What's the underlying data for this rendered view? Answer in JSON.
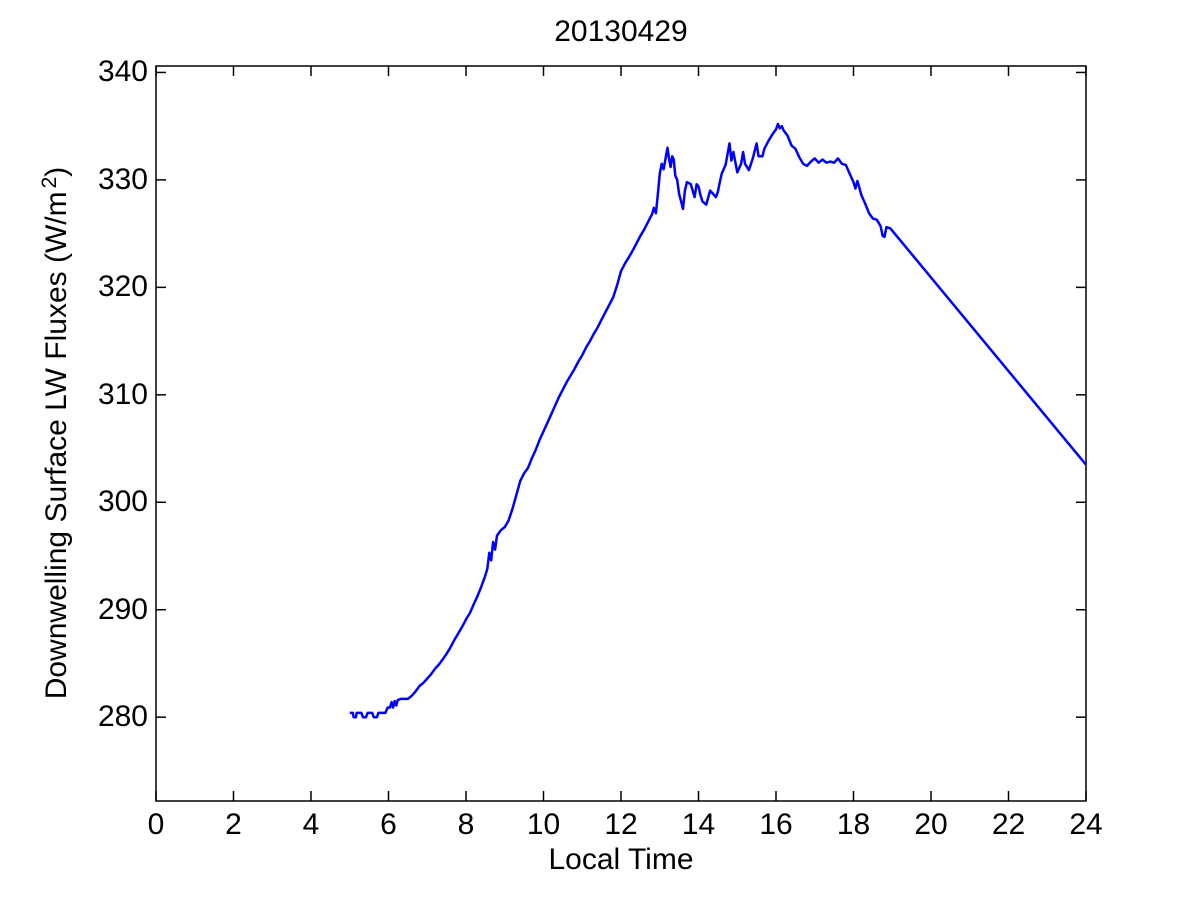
{
  "figure": {
    "title": "20130429",
    "background_color": "#ffffff"
  },
  "axes": {
    "xlabel": "Local Time",
    "ylabel": {
      "main": "Downwelling Surface LW Fluxes (W/m",
      "sup": "2",
      "close": ")"
    },
    "axis_color": "#000000",
    "tick_direction": "in",
    "box": "on"
  },
  "chart_data": {
    "type": "line",
    "title": "20130429",
    "xlabel": "Local Time",
    "ylabel": "Downwelling Surface LW Fluxes (W/m^2)",
    "xlim": [
      0,
      24
    ],
    "ylim": [
      272.2,
      340.6
    ],
    "xticks": [
      0,
      2,
      4,
      6,
      8,
      10,
      12,
      14,
      16,
      18,
      20,
      22,
      24
    ],
    "yticks": [
      280,
      290,
      300,
      310,
      320,
      330,
      340
    ],
    "grid": false,
    "legend": "none",
    "line_color": "#0000ff",
    "line_width": 2.5,
    "series_name": "downwelling-lw-flux",
    "x": [
      5.0,
      5.08,
      5.1,
      5.16,
      5.18,
      5.3,
      5.34,
      5.42,
      5.46,
      5.58,
      5.62,
      5.7,
      5.74,
      5.92,
      5.98,
      6.04,
      6.08,
      6.12,
      6.16,
      6.2,
      6.24,
      6.32,
      6.5,
      6.6,
      6.7,
      6.8,
      6.9,
      7.0,
      7.1,
      7.2,
      7.3,
      7.4,
      7.5,
      7.6,
      7.7,
      7.8,
      7.9,
      8.0,
      8.1,
      8.2,
      8.3,
      8.4,
      8.5,
      8.55,
      8.6,
      8.65,
      8.7,
      8.75,
      8.8,
      8.9,
      9.0,
      9.1,
      9.2,
      9.3,
      9.4,
      9.5,
      9.6,
      9.7,
      9.8,
      9.9,
      10.0,
      10.1,
      10.2,
      10.3,
      10.4,
      10.5,
      10.6,
      10.7,
      10.8,
      10.9,
      11.0,
      11.1,
      11.2,
      11.3,
      11.4,
      11.5,
      11.6,
      11.7,
      11.8,
      11.9,
      12.0,
      12.1,
      12.2,
      12.3,
      12.4,
      12.5,
      12.6,
      12.7,
      12.8,
      12.85,
      12.9,
      12.95,
      13.0,
      13.05,
      13.1,
      13.15,
      13.2,
      13.24,
      13.28,
      13.32,
      13.36,
      13.4,
      13.45,
      13.5,
      13.55,
      13.6,
      13.65,
      13.7,
      13.8,
      13.9,
      13.95,
      14.0,
      14.05,
      14.1,
      14.2,
      14.3,
      14.4,
      14.45,
      14.5,
      14.55,
      14.6,
      14.7,
      14.8,
      14.85,
      14.9,
      15.0,
      15.1,
      15.15,
      15.2,
      15.3,
      15.4,
      15.5,
      15.55,
      15.65,
      15.7,
      15.8,
      15.9,
      16.0,
      16.05,
      16.1,
      16.15,
      16.2,
      16.3,
      16.4,
      16.5,
      16.6,
      16.7,
      16.8,
      16.9,
      17.0,
      17.1,
      17.2,
      17.3,
      17.4,
      17.5,
      17.6,
      17.7,
      17.8,
      17.9,
      18.0,
      18.05,
      18.1,
      18.15,
      18.2,
      18.3,
      18.4,
      18.5,
      18.6,
      18.7,
      18.75,
      18.8,
      18.85,
      18.95,
      24.0
    ],
    "y": [
      280.4,
      280.4,
      280.0,
      280.0,
      280.4,
      280.4,
      280.0,
      280.0,
      280.4,
      280.4,
      280.0,
      280.0,
      280.4,
      280.4,
      280.9,
      280.9,
      281.4,
      280.9,
      281.5,
      281.1,
      281.6,
      281.7,
      281.7,
      282.0,
      282.4,
      282.9,
      283.2,
      283.6,
      284.0,
      284.5,
      284.9,
      285.4,
      285.9,
      286.5,
      287.2,
      287.8,
      288.4,
      289.1,
      289.7,
      290.5,
      291.3,
      292.2,
      293.2,
      293.8,
      295.3,
      294.6,
      296.3,
      295.6,
      296.9,
      297.4,
      297.7,
      298.3,
      299.4,
      300.7,
      302.0,
      302.7,
      303.2,
      304.1,
      304.9,
      305.8,
      306.6,
      307.4,
      308.2,
      309.0,
      309.8,
      310.5,
      311.2,
      311.8,
      312.4,
      313.1,
      313.7,
      314.4,
      315.0,
      315.7,
      316.3,
      317.0,
      317.7,
      318.4,
      319.1,
      320.2,
      321.5,
      322.2,
      322.8,
      323.4,
      324.1,
      324.8,
      325.4,
      326.1,
      326.8,
      327.4,
      326.9,
      328.6,
      330.6,
      331.5,
      331.0,
      332.0,
      333.0,
      332.0,
      331.2,
      332.2,
      331.9,
      330.4,
      330.0,
      328.7,
      328.0,
      327.3,
      329.0,
      329.8,
      329.6,
      328.4,
      329.6,
      329.4,
      328.6,
      328.0,
      327.7,
      329.0,
      328.6,
      328.4,
      328.9,
      329.8,
      330.6,
      331.4,
      333.4,
      331.8,
      332.6,
      330.7,
      331.5,
      332.6,
      331.5,
      330.9,
      332.0,
      333.4,
      332.2,
      332.2,
      332.9,
      333.6,
      334.2,
      334.7,
      335.2,
      334.8,
      335.0,
      334.6,
      334.1,
      333.2,
      332.9,
      332.1,
      331.5,
      331.3,
      331.7,
      332.0,
      331.6,
      331.9,
      331.6,
      331.7,
      331.6,
      332.0,
      331.5,
      331.4,
      330.6,
      329.8,
      329.2,
      329.9,
      329.3,
      328.6,
      327.8,
      326.9,
      326.4,
      326.3,
      325.7,
      324.8,
      324.7,
      325.6,
      325.5,
      303.5
    ]
  }
}
